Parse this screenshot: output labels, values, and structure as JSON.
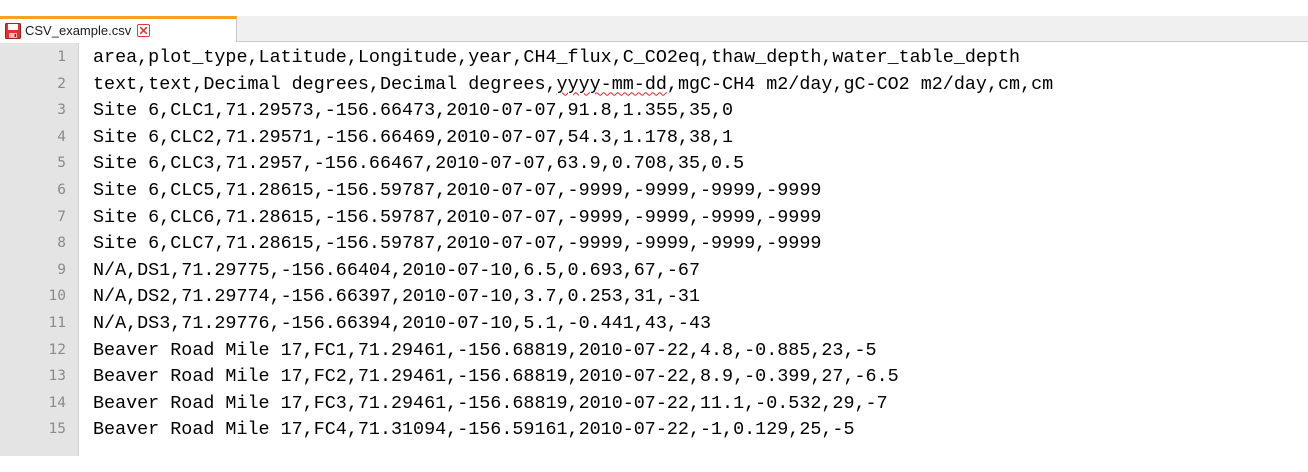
{
  "tab": {
    "filename": "CSV_example.csv",
    "save_icon": "floppy-disk-icon-red",
    "close_icon": "close-icon-red",
    "accent_color": "#f5a21c"
  },
  "editor": {
    "lines": [
      {
        "num": "1",
        "text": "area,plot_type,Latitude,Longitude,year,CH4_flux,C_CO2eq,thaw_depth,water_table_depth"
      },
      {
        "num": "2",
        "text_before": "text,text,Decimal degrees,Decimal degrees,",
        "text_flag": "yyyy-mm-dd",
        "text_after": ",mgC-CH4 m2/day,gC-CO2 m2/day,cm,cm"
      },
      {
        "num": "3",
        "text": "Site 6,CLC1,71.29573,-156.66473,2010-07-07,91.8,1.355,35,0"
      },
      {
        "num": "4",
        "text": "Site 6,CLC2,71.29571,-156.66469,2010-07-07,54.3,1.178,38,1"
      },
      {
        "num": "5",
        "text": "Site 6,CLC3,71.2957,-156.66467,2010-07-07,63.9,0.708,35,0.5"
      },
      {
        "num": "6",
        "text": "Site 6,CLC5,71.28615,-156.59787,2010-07-07,-9999,-9999,-9999,-9999"
      },
      {
        "num": "7",
        "text": "Site 6,CLC6,71.28615,-156.59787,2010-07-07,-9999,-9999,-9999,-9999"
      },
      {
        "num": "8",
        "text": "Site 6,CLC7,71.28615,-156.59787,2010-07-07,-9999,-9999,-9999,-9999"
      },
      {
        "num": "9",
        "text": "N/A,DS1,71.29775,-156.66404,2010-07-10,6.5,0.693,67,-67"
      },
      {
        "num": "10",
        "text": "N/A,DS2,71.29774,-156.66397,2010-07-10,3.7,0.253,31,-31"
      },
      {
        "num": "11",
        "text": "N/A,DS3,71.29776,-156.66394,2010-07-10,5.1,-0.441,43,-43"
      },
      {
        "num": "12",
        "text": "Beaver Road Mile 17,FC1,71.29461,-156.68819,2010-07-22,4.8,-0.885,23,-5"
      },
      {
        "num": "13",
        "text": "Beaver Road Mile 17,FC2,71.29461,-156.68819,2010-07-22,8.9,-0.399,27,-6.5"
      },
      {
        "num": "14",
        "text": "Beaver Road Mile 17,FC3,71.29461,-156.68819,2010-07-22,11.1,-0.532,29,-7"
      },
      {
        "num": "15",
        "text": "Beaver Road Mile 17,FC4,71.31094,-156.59161,2010-07-22,-1,0.129,25,-5"
      }
    ]
  }
}
